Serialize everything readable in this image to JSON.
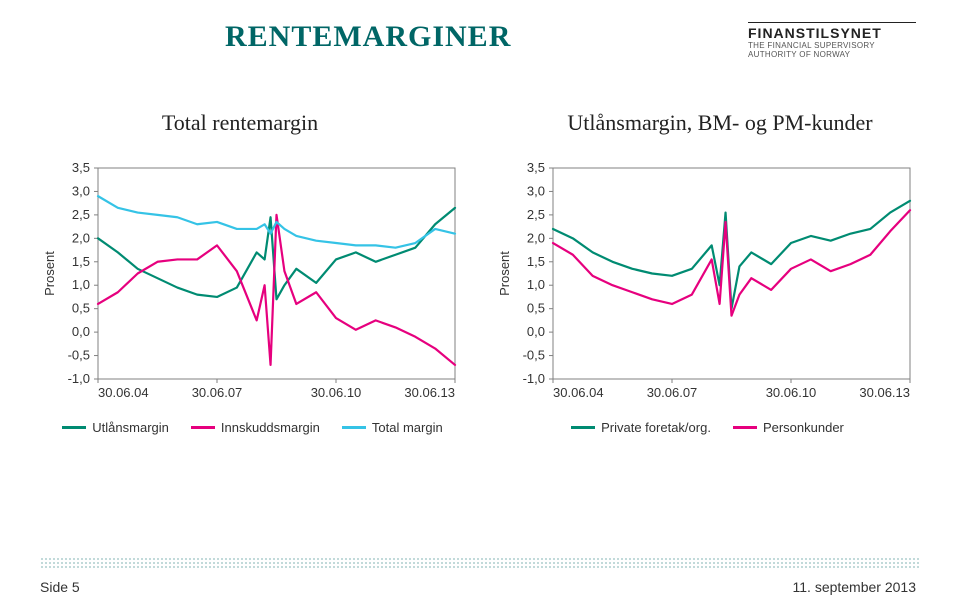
{
  "page": {
    "title": "RENTEMARGINER",
    "logo_title": "FINANSTILSYNET",
    "logo_sub1": "THE FINANCIAL SUPERVISORY",
    "logo_sub2": "AUTHORITY OF NORWAY",
    "footer_left": "Side 5",
    "footer_right": "11. september 2013"
  },
  "chart_left": {
    "type": "line",
    "subtitle": "Total rentemargin",
    "ylabel": "Prosent",
    "y_min": -1.0,
    "y_max": 3.5,
    "y_ticks": [
      -1.0,
      -0.5,
      0.0,
      0.5,
      1.0,
      1.5,
      2.0,
      2.5,
      3.0,
      3.5
    ],
    "y_tick_labels": [
      "-1,0",
      "-0,5",
      "0,0",
      "0,5",
      "1,0",
      "1,5",
      "2,0",
      "2,5",
      "3,0",
      "3,5"
    ],
    "x_min": 0,
    "x_max": 9,
    "x_tick_positions": [
      0,
      3,
      6,
      9
    ],
    "x_tick_labels": [
      "30.06.04",
      "30.06.07",
      "30.06.10",
      "30.06.13"
    ],
    "frame_color": "#808080",
    "background_color": "#ffffff",
    "line_width": 2.2,
    "series": [
      {
        "name": "Utlånsmargin",
        "color": "#008b72",
        "x": [
          0,
          0.5,
          1,
          1.5,
          2,
          2.5,
          3,
          3.5,
          4,
          4.2,
          4.35,
          4.5,
          4.7,
          5,
          5.5,
          6,
          6.5,
          7,
          7.5,
          8,
          8.5,
          9
        ],
        "y": [
          2.0,
          1.7,
          1.35,
          1.15,
          0.95,
          0.8,
          0.75,
          0.95,
          1.7,
          1.55,
          2.45,
          0.7,
          1.0,
          1.35,
          1.05,
          1.55,
          1.7,
          1.5,
          1.65,
          1.8,
          2.3,
          2.65
        ]
      },
      {
        "name": "Innskuddsmargin",
        "color": "#e6007e",
        "x": [
          0,
          0.5,
          1,
          1.5,
          2,
          2.5,
          3,
          3.5,
          4,
          4.2,
          4.35,
          4.5,
          4.7,
          5,
          5.5,
          6,
          6.5,
          7,
          7.5,
          8,
          8.5,
          9
        ],
        "y": [
          0.6,
          0.85,
          1.25,
          1.5,
          1.55,
          1.55,
          1.85,
          1.3,
          0.25,
          1.0,
          -0.7,
          2.5,
          1.3,
          0.6,
          0.85,
          0.3,
          0.05,
          0.25,
          0.1,
          -0.1,
          -0.35,
          -0.7
        ]
      },
      {
        "name": "Total margin",
        "color": "#35c3e6",
        "x": [
          0,
          0.5,
          1,
          1.5,
          2,
          2.5,
          3,
          3.5,
          4,
          4.2,
          4.35,
          4.5,
          4.7,
          5,
          5.5,
          6,
          6.5,
          7,
          7.5,
          8,
          8.5,
          9
        ],
        "y": [
          2.9,
          2.65,
          2.55,
          2.5,
          2.45,
          2.3,
          2.35,
          2.2,
          2.2,
          2.3,
          2.1,
          2.35,
          2.2,
          2.05,
          1.95,
          1.9,
          1.85,
          1.85,
          1.8,
          1.9,
          2.2,
          2.1
        ]
      }
    ],
    "legend": [
      {
        "label": "Utlånsmargin",
        "color": "#008b72"
      },
      {
        "label": "Innskuddsmargin",
        "color": "#e6007e"
      },
      {
        "label": "Total margin",
        "color": "#35c3e6"
      }
    ]
  },
  "chart_right": {
    "type": "line",
    "subtitle": "Utlånsmargin, BM- og PM-kunder",
    "ylabel": "Prosent",
    "y_min": -1.0,
    "y_max": 3.5,
    "y_ticks": [
      -1.0,
      -0.5,
      0.0,
      0.5,
      1.0,
      1.5,
      2.0,
      2.5,
      3.0,
      3.5
    ],
    "y_tick_labels": [
      "-1,0",
      "-0,5",
      "0,0",
      "0,5",
      "1,0",
      "1,5",
      "2,0",
      "2,5",
      "3,0",
      "3,5"
    ],
    "x_min": 0,
    "x_max": 9,
    "x_tick_positions": [
      0,
      3,
      6,
      9
    ],
    "x_tick_labels": [
      "30.06.04",
      "30.06.07",
      "30.06.10",
      "30.06.13"
    ],
    "frame_color": "#808080",
    "background_color": "#ffffff",
    "line_width": 2.2,
    "series": [
      {
        "name": "Private foretak/org.",
        "color": "#008b72",
        "x": [
          0,
          0.5,
          1,
          1.5,
          2,
          2.5,
          3,
          3.5,
          4,
          4.2,
          4.35,
          4.5,
          4.7,
          5,
          5.5,
          6,
          6.5,
          7,
          7.5,
          8,
          8.5,
          9
        ],
        "y": [
          2.2,
          2.0,
          1.7,
          1.5,
          1.35,
          1.25,
          1.2,
          1.35,
          1.85,
          1.0,
          2.55,
          0.5,
          1.4,
          1.7,
          1.45,
          1.9,
          2.05,
          1.95,
          2.1,
          2.2,
          2.55,
          2.8
        ]
      },
      {
        "name": "Personkunder",
        "color": "#e6007e",
        "x": [
          0,
          0.5,
          1,
          1.5,
          2,
          2.5,
          3,
          3.5,
          4,
          4.2,
          4.35,
          4.5,
          4.7,
          5,
          5.5,
          6,
          6.5,
          7,
          7.5,
          8,
          8.5,
          9
        ],
        "y": [
          1.9,
          1.65,
          1.2,
          1.0,
          0.85,
          0.7,
          0.6,
          0.8,
          1.55,
          0.6,
          2.35,
          0.35,
          0.8,
          1.15,
          0.9,
          1.35,
          1.55,
          1.3,
          1.45,
          1.65,
          2.15,
          2.6
        ]
      }
    ],
    "legend": [
      {
        "label": "Private foretak/org.",
        "color": "#008b72"
      },
      {
        "label": "Personkunder",
        "color": "#e6007e"
      }
    ]
  }
}
